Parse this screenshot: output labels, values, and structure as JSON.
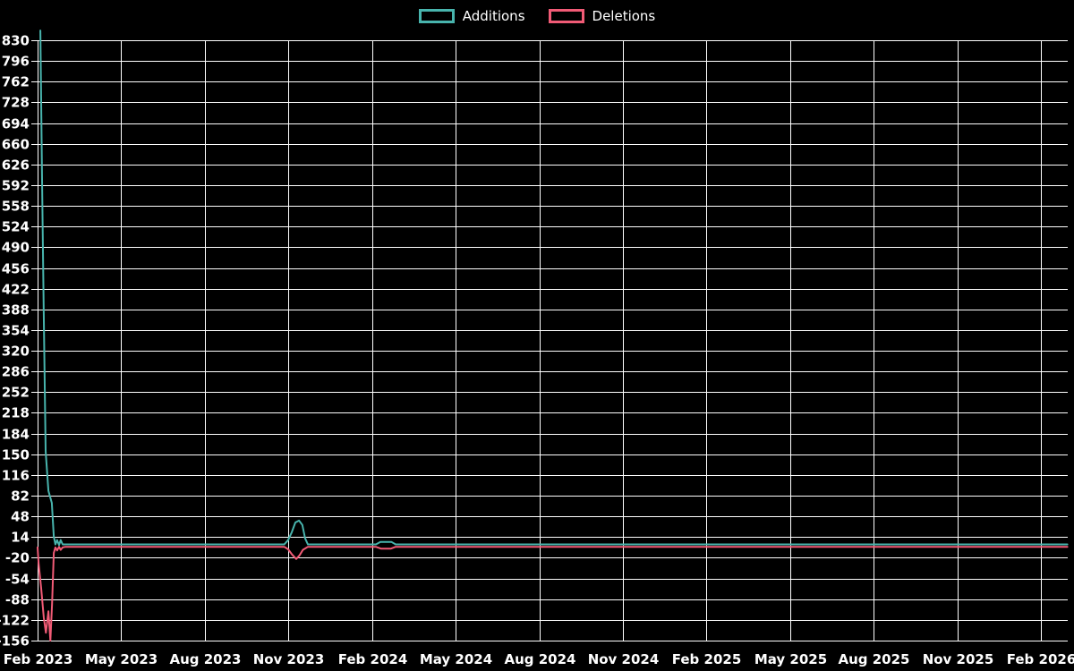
{
  "background_color": "#000000",
  "text_color": "#ffffff",
  "gridline_color": "#ffffff",
  "legend": {
    "items": [
      {
        "label": "Additions",
        "color": "#48b4ad"
      },
      {
        "label": "Deletions",
        "color": "#f15b76"
      }
    ]
  },
  "chart_data": {
    "type": "line",
    "title": "",
    "xlabel": "",
    "ylabel": "",
    "grid": true,
    "legend_position": "top",
    "x_labels": [
      "Feb 2023",
      "May 2023",
      "Aug 2023",
      "Nov 2023",
      "Feb 2024",
      "May 2024",
      "Aug 2024",
      "Nov 2024",
      "Feb 2025",
      "May 2025",
      "Aug 2025",
      "Nov 2025",
      "Feb 2026"
    ],
    "months_per_x_label": 3,
    "x_range_months": [
      0,
      36.95
    ],
    "y_ticks": [
      830,
      796,
      762,
      728,
      694,
      660,
      626,
      592,
      558,
      524,
      490,
      456,
      422,
      388,
      354,
      320,
      286,
      252,
      218,
      184,
      150,
      116,
      82,
      48,
      14,
      -20,
      -54,
      -88,
      -122,
      -156
    ],
    "ylim": [
      -156,
      846
    ],
    "series": [
      {
        "name": "Deletions",
        "color": "#f15b76",
        "points": [
          [
            0.0,
            -3
          ],
          [
            0.04,
            -30
          ],
          [
            0.13,
            -70
          ],
          [
            0.22,
            -118
          ],
          [
            0.3,
            -143
          ],
          [
            0.39,
            -108
          ],
          [
            0.46,
            -156
          ],
          [
            0.52,
            -95
          ],
          [
            0.58,
            -12
          ],
          [
            0.64,
            -3
          ],
          [
            0.7,
            -8
          ],
          [
            0.77,
            -2
          ],
          [
            0.83,
            -7
          ],
          [
            0.9,
            -3
          ],
          [
            1.0,
            -2
          ],
          [
            1.19,
            -2
          ],
          [
            8.85,
            -2
          ],
          [
            8.99,
            -6
          ],
          [
            9.12,
            -14
          ],
          [
            9.28,
            -22
          ],
          [
            9.4,
            -16
          ],
          [
            9.52,
            -7
          ],
          [
            9.7,
            -2
          ],
          [
            12.14,
            -2
          ],
          [
            12.32,
            -5
          ],
          [
            12.68,
            -5
          ],
          [
            12.85,
            -2
          ],
          [
            36.95,
            -2
          ]
        ]
      },
      {
        "name": "Additions",
        "color": "#48b4ad",
        "points": [
          [
            0.1,
            846
          ],
          [
            0.16,
            600
          ],
          [
            0.22,
            380
          ],
          [
            0.29,
            155
          ],
          [
            0.39,
            90
          ],
          [
            0.51,
            70
          ],
          [
            0.58,
            15
          ],
          [
            0.64,
            2
          ],
          [
            0.7,
            9
          ],
          [
            0.77,
            1
          ],
          [
            0.83,
            9
          ],
          [
            0.9,
            2
          ],
          [
            1.0,
            2
          ],
          [
            1.19,
            2
          ],
          [
            8.85,
            2
          ],
          [
            8.99,
            9
          ],
          [
            9.12,
            22
          ],
          [
            9.25,
            38
          ],
          [
            9.38,
            41
          ],
          [
            9.5,
            34
          ],
          [
            9.6,
            12
          ],
          [
            9.7,
            2
          ],
          [
            12.14,
            2
          ],
          [
            12.3,
            6
          ],
          [
            12.7,
            6
          ],
          [
            12.85,
            2
          ],
          [
            36.95,
            2
          ]
        ]
      }
    ]
  }
}
